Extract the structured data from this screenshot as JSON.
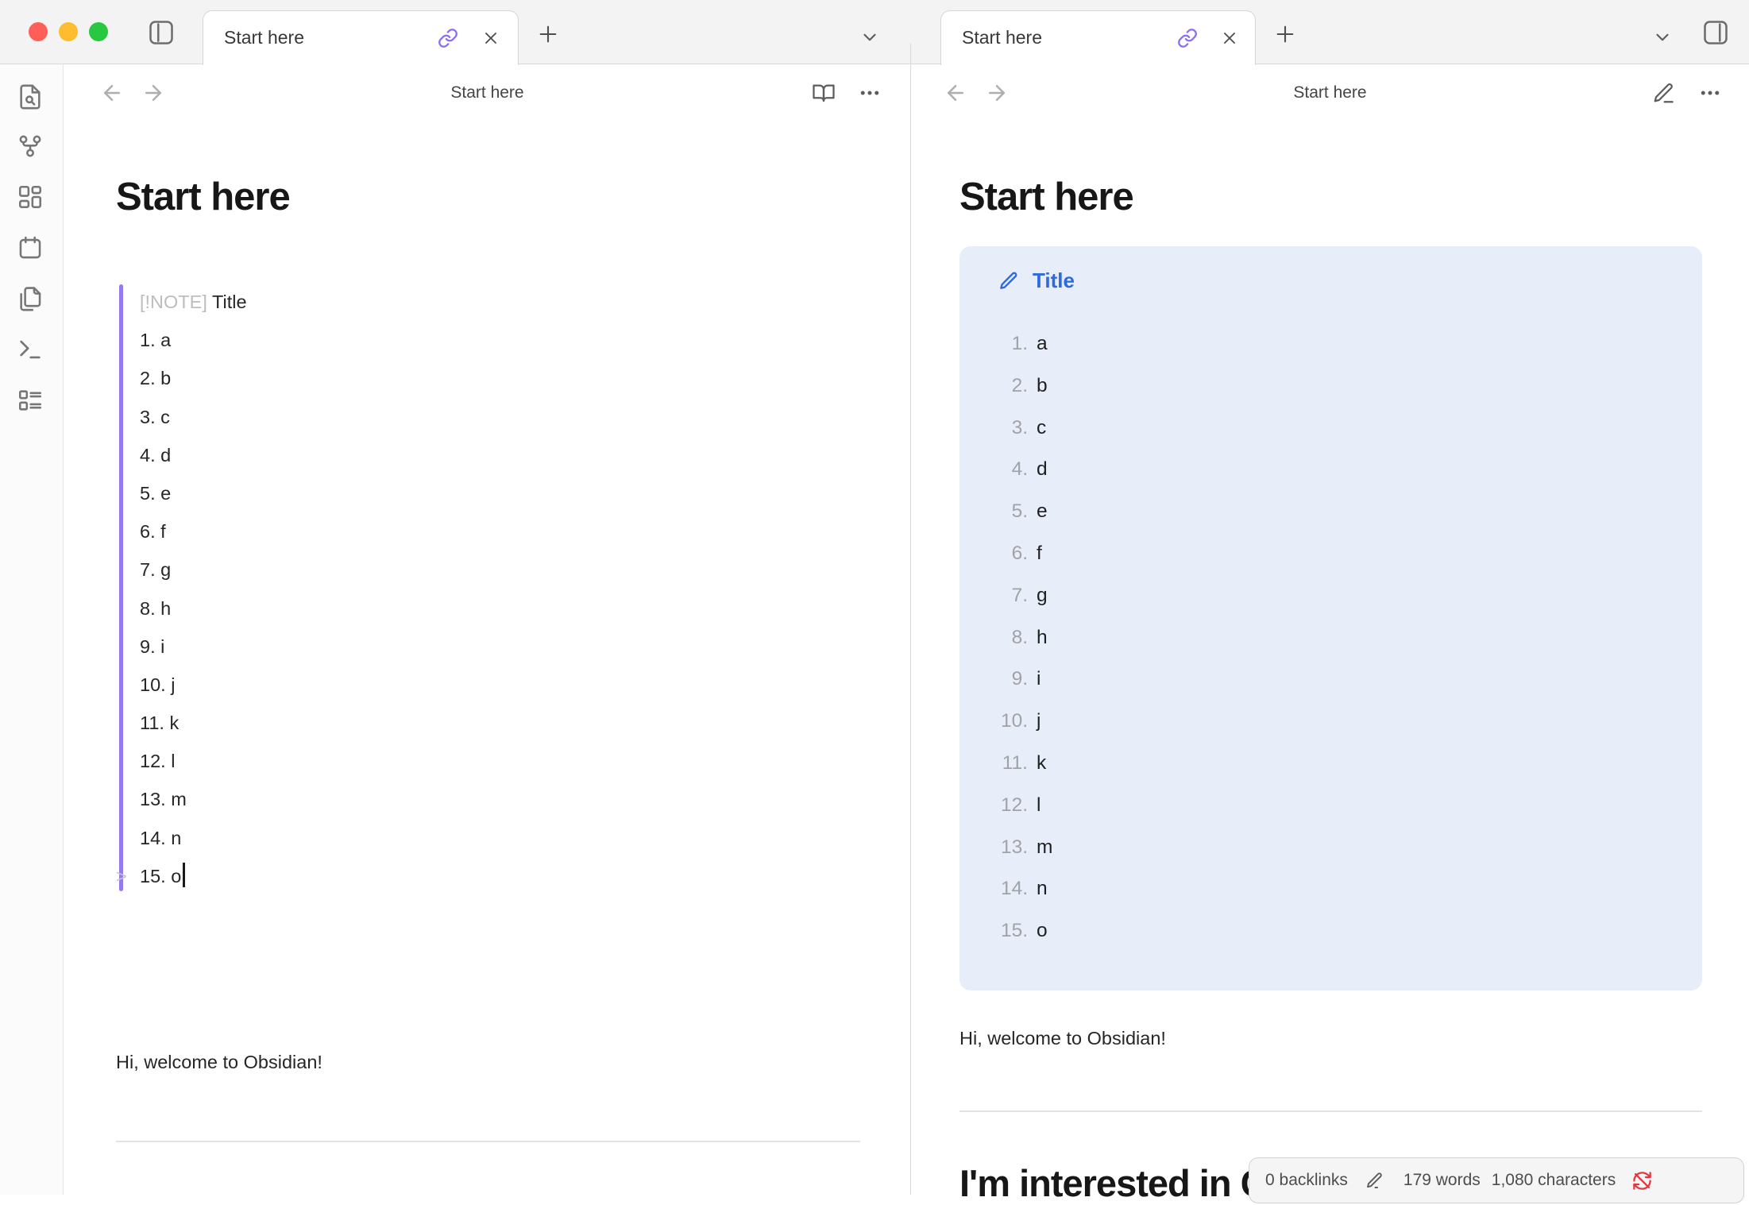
{
  "tabs": {
    "left": {
      "title": "Start here"
    },
    "right": {
      "title": "Start here"
    }
  },
  "left_pane": {
    "nav_title": "Start here",
    "note_title": "Start here",
    "callout_source": {
      "marker": "[!NOTE]",
      "title": "Title",
      "quote_char": ">",
      "items": [
        "a",
        "b",
        "c",
        "d",
        "e",
        "f",
        "g",
        "h",
        "i",
        "j",
        "k",
        "l",
        "m",
        "n",
        "o"
      ]
    },
    "paragraph": "Hi, welcome to Obsidian!"
  },
  "right_pane": {
    "nav_title": "Start here",
    "note_title": "Start here",
    "callout": {
      "title": "Title",
      "items": [
        "a",
        "b",
        "c",
        "d",
        "e",
        "f",
        "g",
        "h",
        "i",
        "j",
        "k",
        "l",
        "m",
        "n",
        "o"
      ]
    },
    "paragraph": "Hi, welcome to Obsidian!",
    "partial_heading": "I'm interested in C"
  },
  "status_bar": {
    "backlinks": "0 backlinks",
    "words": "179 words",
    "characters": "1,080 characters"
  },
  "colors": {
    "accent_purple": "#9579f1",
    "link_purple": "#8a6ff0",
    "callout_blue": "#2e69dd",
    "callout_bg": "#e7eefa",
    "sync_red": "#e0383e"
  }
}
